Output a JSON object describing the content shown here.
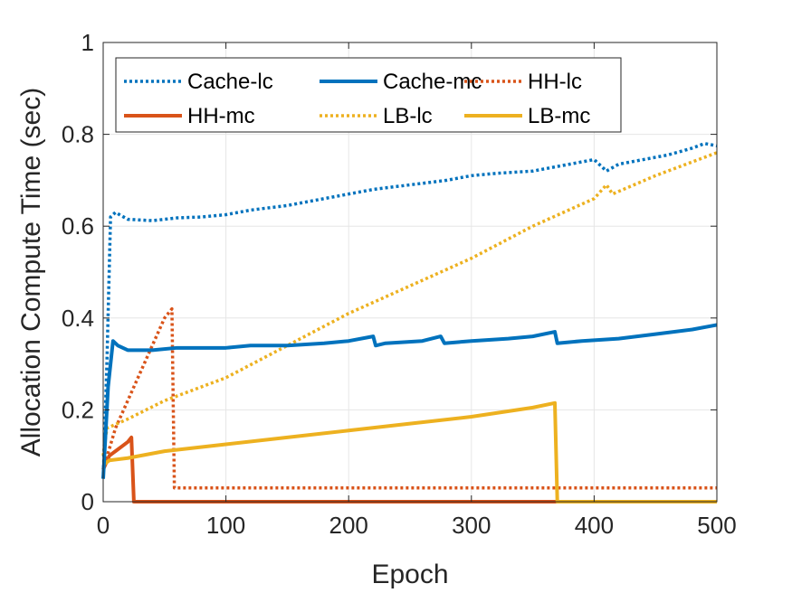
{
  "chart_data": {
    "type": "line",
    "xlabel": "Epoch",
    "ylabel": "Allocation Compute Time (sec)",
    "xlim": [
      0,
      500
    ],
    "ylim": [
      0,
      1
    ],
    "xticks": [
      0,
      100,
      200,
      300,
      400,
      500
    ],
    "xtick_labels": [
      "0",
      "100",
      "200",
      "300",
      "400",
      "500"
    ],
    "yticks": [
      0,
      0.2,
      0.4,
      0.6,
      0.8,
      1
    ],
    "ytick_labels": [
      "0",
      "0.2",
      "0.4",
      "0.6",
      "0.8",
      "1"
    ],
    "grid": true,
    "legend": {
      "position": "top-left",
      "columns": 3
    },
    "series": [
      {
        "name": "Cache-lc",
        "color": "#0072BD",
        "style": "dotted",
        "points": [
          [
            0,
            0.05
          ],
          [
            3,
            0.3
          ],
          [
            6,
            0.62
          ],
          [
            10,
            0.63
          ],
          [
            20,
            0.615
          ],
          [
            40,
            0.612
          ],
          [
            60,
            0.618
          ],
          [
            80,
            0.62
          ],
          [
            100,
            0.625
          ],
          [
            120,
            0.635
          ],
          [
            150,
            0.645
          ],
          [
            180,
            0.66
          ],
          [
            200,
            0.67
          ],
          [
            220,
            0.68
          ],
          [
            250,
            0.69
          ],
          [
            280,
            0.7
          ],
          [
            300,
            0.71
          ],
          [
            320,
            0.715
          ],
          [
            350,
            0.72
          ],
          [
            370,
            0.73
          ],
          [
            390,
            0.74
          ],
          [
            400,
            0.745
          ],
          [
            410,
            0.72
          ],
          [
            420,
            0.735
          ],
          [
            440,
            0.745
          ],
          [
            460,
            0.755
          ],
          [
            480,
            0.77
          ],
          [
            490,
            0.78
          ],
          [
            500,
            0.775
          ]
        ]
      },
      {
        "name": "Cache-mc",
        "color": "#0072BD",
        "style": "solid",
        "points": [
          [
            0,
            0.05
          ],
          [
            4,
            0.25
          ],
          [
            8,
            0.35
          ],
          [
            12,
            0.34
          ],
          [
            20,
            0.33
          ],
          [
            40,
            0.33
          ],
          [
            60,
            0.335
          ],
          [
            80,
            0.335
          ],
          [
            100,
            0.335
          ],
          [
            120,
            0.34
          ],
          [
            150,
            0.34
          ],
          [
            180,
            0.345
          ],
          [
            200,
            0.35
          ],
          [
            220,
            0.36
          ],
          [
            222,
            0.34
          ],
          [
            230,
            0.345
          ],
          [
            260,
            0.35
          ],
          [
            275,
            0.36
          ],
          [
            278,
            0.345
          ],
          [
            300,
            0.35
          ],
          [
            330,
            0.355
          ],
          [
            350,
            0.36
          ],
          [
            368,
            0.37
          ],
          [
            370,
            0.345
          ],
          [
            390,
            0.35
          ],
          [
            420,
            0.355
          ],
          [
            450,
            0.365
          ],
          [
            480,
            0.375
          ],
          [
            500,
            0.385
          ]
        ]
      },
      {
        "name": "HH-lc",
        "color": "#D95319",
        "style": "dotted",
        "points": [
          [
            0,
            0.07
          ],
          [
            10,
            0.16
          ],
          [
            20,
            0.22
          ],
          [
            30,
            0.28
          ],
          [
            40,
            0.34
          ],
          [
            50,
            0.4
          ],
          [
            56,
            0.42
          ],
          [
            58,
            0.03
          ],
          [
            100,
            0.03
          ],
          [
            200,
            0.03
          ],
          [
            300,
            0.03
          ],
          [
            400,
            0.03
          ],
          [
            500,
            0.03
          ]
        ]
      },
      {
        "name": "HH-mc",
        "color": "#D95319",
        "style": "solid",
        "points": [
          [
            0,
            0.07
          ],
          [
            5,
            0.1
          ],
          [
            10,
            0.11
          ],
          [
            15,
            0.12
          ],
          [
            20,
            0.13
          ],
          [
            23,
            0.14
          ],
          [
            25,
            0.0
          ],
          [
            100,
            0.0
          ],
          [
            200,
            0.0
          ],
          [
            300,
            0.0
          ],
          [
            400,
            0.0
          ],
          [
            500,
            0.0
          ]
        ]
      },
      {
        "name": "LB-lc",
        "color": "#EDB120",
        "style": "dotted",
        "points": [
          [
            0,
            0.1
          ],
          [
            3,
            0.16
          ],
          [
            20,
            0.18
          ],
          [
            50,
            0.22
          ],
          [
            100,
            0.27
          ],
          [
            150,
            0.34
          ],
          [
            200,
            0.41
          ],
          [
            250,
            0.47
          ],
          [
            300,
            0.53
          ],
          [
            350,
            0.6
          ],
          [
            400,
            0.66
          ],
          [
            410,
            0.69
          ],
          [
            415,
            0.67
          ],
          [
            450,
            0.71
          ],
          [
            500,
            0.76
          ]
        ]
      },
      {
        "name": "LB-mc",
        "color": "#EDB120",
        "style": "solid",
        "points": [
          [
            0,
            0.08
          ],
          [
            5,
            0.09
          ],
          [
            20,
            0.095
          ],
          [
            50,
            0.11
          ],
          [
            100,
            0.125
          ],
          [
            150,
            0.14
          ],
          [
            200,
            0.155
          ],
          [
            250,
            0.17
          ],
          [
            300,
            0.185
          ],
          [
            350,
            0.205
          ],
          [
            368,
            0.215
          ],
          [
            370,
            0.0
          ],
          [
            400,
            0.0
          ],
          [
            450,
            0.0
          ],
          [
            500,
            0.0
          ]
        ]
      }
    ]
  }
}
